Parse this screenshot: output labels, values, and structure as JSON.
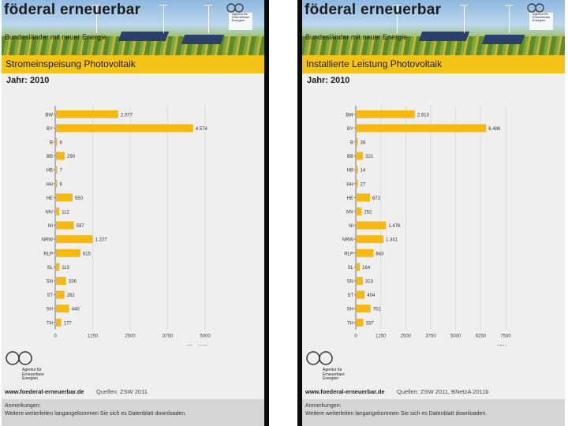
{
  "colors": {
    "accent": "#f3c318",
    "bar": "#f7b90f",
    "background": "#efefef"
  },
  "panels": [
    {
      "brand": "föderal erneuerbar",
      "subtitle": "Bundesländer mit neuer Energie",
      "logo_text": [
        "Agentur für",
        "Erneuerbare",
        "Energien"
      ],
      "title": "Stromeinspeisung Photovoltaik",
      "year": "Jahr: 2010",
      "chart_data": {
        "type": "bar",
        "orientation": "horizontal",
        "categories": [
          "BW",
          "BY",
          "B",
          "BB",
          "HB",
          "HH",
          "HE",
          "MV",
          "NI",
          "NRW",
          "RLP",
          "SL",
          "SN",
          "ST",
          "SH",
          "TH"
        ],
        "values": [
          2077,
          4574,
          8,
          290,
          7,
          6,
          550,
          112,
          597,
          1227,
          815,
          113,
          336,
          282,
          440,
          177
        ],
        "value_labels": [
          "2.077",
          "4.574",
          "8",
          "290",
          "7",
          "6",
          "550",
          "112",
          "597",
          "1.227",
          "815",
          "113",
          "336",
          "282",
          "440",
          "177"
        ],
        "xticks": [
          "0",
          "1250",
          "2500",
          "3750",
          "5000"
        ],
        "xlim": [
          0,
          5000
        ],
        "xlabel": "Mio. kWh"
      },
      "footer": {
        "url": "www.foederal-erneuerbar.de",
        "source": "Quellen: ZSW 2011",
        "notes_heading": "Anmerkungen:",
        "notes_text": "Weitere weiterleiten langangekommen Sie sich es Datenblatt downloaden."
      }
    },
    {
      "brand": "föderal erneuerbar",
      "subtitle": "Bundesländer mit neuer Energie",
      "logo_text": [
        "Agentur für",
        "Erneuerbare",
        "Energien"
      ],
      "title": "Installierte Leistung Photovoltaik",
      "year": "Jahr: 2010",
      "chart_data": {
        "type": "bar",
        "orientation": "horizontal",
        "categories": [
          "BW",
          "BY",
          "B",
          "BB",
          "HB",
          "HH",
          "HE",
          "MV",
          "NI",
          "NRW",
          "RLP",
          "SL",
          "SN",
          "ST",
          "SH",
          "TH"
        ],
        "values": [
          2913,
          6486,
          38,
          321,
          14,
          27,
          672,
          252,
          1476,
          1341,
          843,
          164,
          313,
          404,
          701,
          337
        ],
        "value_labels": [
          "2.913",
          "6.486",
          "38",
          "321",
          "14",
          "27",
          "672",
          "252",
          "1.476",
          "1.341",
          "843",
          "164",
          "313",
          "404",
          "701",
          "337"
        ],
        "xticks": [
          "0",
          "1250",
          "2500",
          "3750",
          "5000",
          "6250",
          "7500"
        ],
        "xlim": [
          0,
          7500
        ],
        "xlabel": "MWp"
      },
      "footer": {
        "url": "www.foederal-erneuerbar.de",
        "source": "Quellen: ZSW 2011, BNetzA 2011b",
        "notes_heading": "Anmerkungen:",
        "notes_text": "Weitere weiterleiten langangekommen Sie sich es Datenblatt downloaden."
      }
    }
  ]
}
